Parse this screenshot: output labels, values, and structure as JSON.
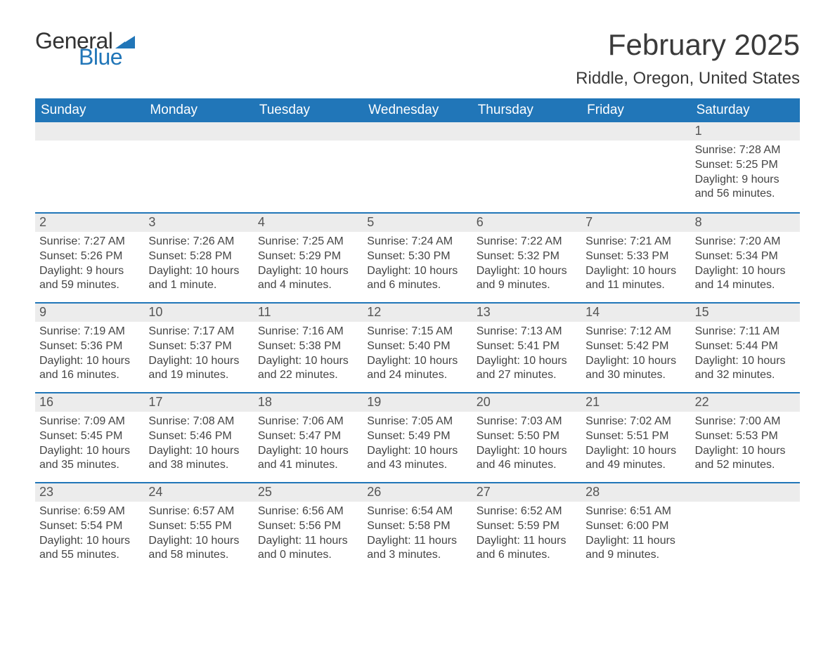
{
  "logo": {
    "text_top": "General",
    "text_bottom": "Blue",
    "accent_color": "#2176b8",
    "text_color": "#333333"
  },
  "title": "February 2025",
  "location": "Riddle, Oregon, United States",
  "colors": {
    "header_bg": "#2176b8",
    "header_text": "#ffffff",
    "strip_bg": "#ececec",
    "strip_text": "#555555",
    "body_text": "#444444",
    "border": "#2176b8",
    "background": "#ffffff"
  },
  "typography": {
    "title_fontsize": 42,
    "location_fontsize": 24,
    "dow_fontsize": 19,
    "daynum_fontsize": 18,
    "body_fontsize": 16,
    "font_family": "Segoe UI"
  },
  "days_of_week": [
    "Sunday",
    "Monday",
    "Tuesday",
    "Wednesday",
    "Thursday",
    "Friday",
    "Saturday"
  ],
  "labels": {
    "sunrise": "Sunrise:",
    "sunset": "Sunset:",
    "daylight": "Daylight:"
  },
  "weeks": [
    [
      {
        "day": "",
        "sunrise": "",
        "sunset": "",
        "daylight": ""
      },
      {
        "day": "",
        "sunrise": "",
        "sunset": "",
        "daylight": ""
      },
      {
        "day": "",
        "sunrise": "",
        "sunset": "",
        "daylight": ""
      },
      {
        "day": "",
        "sunrise": "",
        "sunset": "",
        "daylight": ""
      },
      {
        "day": "",
        "sunrise": "",
        "sunset": "",
        "daylight": ""
      },
      {
        "day": "",
        "sunrise": "",
        "sunset": "",
        "daylight": ""
      },
      {
        "day": "1",
        "sunrise": "7:28 AM",
        "sunset": "5:25 PM",
        "daylight": "9 hours and 56 minutes."
      }
    ],
    [
      {
        "day": "2",
        "sunrise": "7:27 AM",
        "sunset": "5:26 PM",
        "daylight": "9 hours and 59 minutes."
      },
      {
        "day": "3",
        "sunrise": "7:26 AM",
        "sunset": "5:28 PM",
        "daylight": "10 hours and 1 minute."
      },
      {
        "day": "4",
        "sunrise": "7:25 AM",
        "sunset": "5:29 PM",
        "daylight": "10 hours and 4 minutes."
      },
      {
        "day": "5",
        "sunrise": "7:24 AM",
        "sunset": "5:30 PM",
        "daylight": "10 hours and 6 minutes."
      },
      {
        "day": "6",
        "sunrise": "7:22 AM",
        "sunset": "5:32 PM",
        "daylight": "10 hours and 9 minutes."
      },
      {
        "day": "7",
        "sunrise": "7:21 AM",
        "sunset": "5:33 PM",
        "daylight": "10 hours and 11 minutes."
      },
      {
        "day": "8",
        "sunrise": "7:20 AM",
        "sunset": "5:34 PM",
        "daylight": "10 hours and 14 minutes."
      }
    ],
    [
      {
        "day": "9",
        "sunrise": "7:19 AM",
        "sunset": "5:36 PM",
        "daylight": "10 hours and 16 minutes."
      },
      {
        "day": "10",
        "sunrise": "7:17 AM",
        "sunset": "5:37 PM",
        "daylight": "10 hours and 19 minutes."
      },
      {
        "day": "11",
        "sunrise": "7:16 AM",
        "sunset": "5:38 PM",
        "daylight": "10 hours and 22 minutes."
      },
      {
        "day": "12",
        "sunrise": "7:15 AM",
        "sunset": "5:40 PM",
        "daylight": "10 hours and 24 minutes."
      },
      {
        "day": "13",
        "sunrise": "7:13 AM",
        "sunset": "5:41 PM",
        "daylight": "10 hours and 27 minutes."
      },
      {
        "day": "14",
        "sunrise": "7:12 AM",
        "sunset": "5:42 PM",
        "daylight": "10 hours and 30 minutes."
      },
      {
        "day": "15",
        "sunrise": "7:11 AM",
        "sunset": "5:44 PM",
        "daylight": "10 hours and 32 minutes."
      }
    ],
    [
      {
        "day": "16",
        "sunrise": "7:09 AM",
        "sunset": "5:45 PM",
        "daylight": "10 hours and 35 minutes."
      },
      {
        "day": "17",
        "sunrise": "7:08 AM",
        "sunset": "5:46 PM",
        "daylight": "10 hours and 38 minutes."
      },
      {
        "day": "18",
        "sunrise": "7:06 AM",
        "sunset": "5:47 PM",
        "daylight": "10 hours and 41 minutes."
      },
      {
        "day": "19",
        "sunrise": "7:05 AM",
        "sunset": "5:49 PM",
        "daylight": "10 hours and 43 minutes."
      },
      {
        "day": "20",
        "sunrise": "7:03 AM",
        "sunset": "5:50 PM",
        "daylight": "10 hours and 46 minutes."
      },
      {
        "day": "21",
        "sunrise": "7:02 AM",
        "sunset": "5:51 PM",
        "daylight": "10 hours and 49 minutes."
      },
      {
        "day": "22",
        "sunrise": "7:00 AM",
        "sunset": "5:53 PM",
        "daylight": "10 hours and 52 minutes."
      }
    ],
    [
      {
        "day": "23",
        "sunrise": "6:59 AM",
        "sunset": "5:54 PM",
        "daylight": "10 hours and 55 minutes."
      },
      {
        "day": "24",
        "sunrise": "6:57 AM",
        "sunset": "5:55 PM",
        "daylight": "10 hours and 58 minutes."
      },
      {
        "day": "25",
        "sunrise": "6:56 AM",
        "sunset": "5:56 PM",
        "daylight": "11 hours and 0 minutes."
      },
      {
        "day": "26",
        "sunrise": "6:54 AM",
        "sunset": "5:58 PM",
        "daylight": "11 hours and 3 minutes."
      },
      {
        "day": "27",
        "sunrise": "6:52 AM",
        "sunset": "5:59 PM",
        "daylight": "11 hours and 6 minutes."
      },
      {
        "day": "28",
        "sunrise": "6:51 AM",
        "sunset": "6:00 PM",
        "daylight": "11 hours and 9 minutes."
      },
      {
        "day": "",
        "sunrise": "",
        "sunset": "",
        "daylight": ""
      }
    ]
  ]
}
